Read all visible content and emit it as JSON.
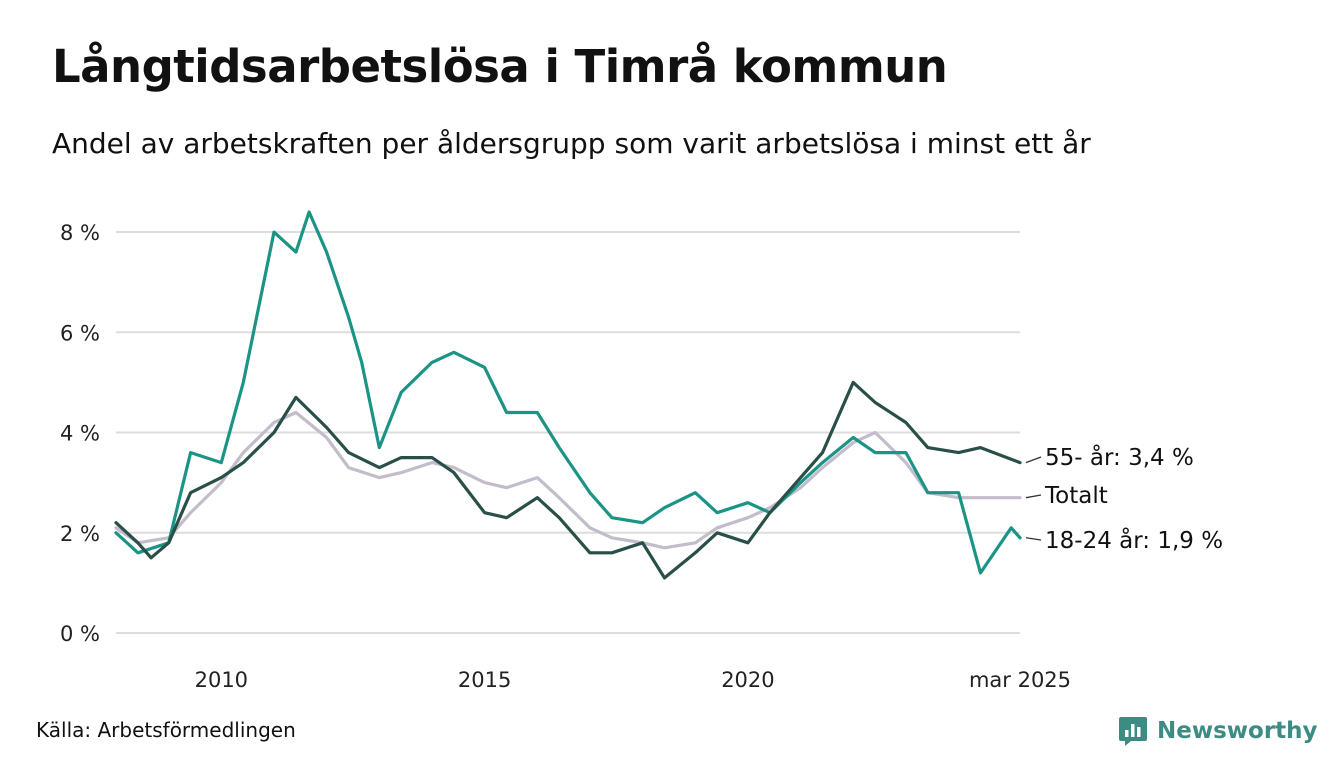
{
  "header": {
    "title": "Långtidsarbetslösa i Timrå kommun",
    "subtitle": "Andel av arbetskraften per åldersgrupp som varit arbetslösa i minst ett år"
  },
  "footer": {
    "source": "Källa: Arbetsförmedlingen",
    "brand": "Newsworthy",
    "brand_icon": "bar-chart-speech-bubble-icon"
  },
  "colors": {
    "totalt": "#c3bccb",
    "age_55": "#2a4f49",
    "age_18_24": "#1b9485",
    "grid": "#dddddd",
    "brand": "#3d8c83"
  },
  "chart_data": {
    "type": "line",
    "xlim": [
      "2008-01",
      "2025-03"
    ],
    "ylim": [
      0,
      8.5
    ],
    "y_ticks": [
      {
        "value": 0,
        "label": "0 %"
      },
      {
        "value": 2,
        "label": "2 %"
      },
      {
        "value": 4,
        "label": "4 %"
      },
      {
        "value": 6,
        "label": "6 %"
      },
      {
        "value": 8,
        "label": "8 %"
      }
    ],
    "x_ticks": [
      {
        "value": "2010-01",
        "label": "2010"
      },
      {
        "value": "2015-01",
        "label": "2015"
      },
      {
        "value": "2020-01",
        "label": "2020"
      },
      {
        "value": "2025-03",
        "label": "mar 2025"
      }
    ],
    "grid": true,
    "series": [
      {
        "key": "totalt",
        "name": "Totalt",
        "points": [
          [
            "2008-01",
            2.1
          ],
          [
            "2008-06",
            1.8
          ],
          [
            "2009-01",
            1.9
          ],
          [
            "2009-06",
            2.4
          ],
          [
            "2010-01",
            3.0
          ],
          [
            "2010-06",
            3.6
          ],
          [
            "2011-01",
            4.2
          ],
          [
            "2011-06",
            4.4
          ],
          [
            "2012-01",
            3.9
          ],
          [
            "2012-06",
            3.3
          ],
          [
            "2013-01",
            3.1
          ],
          [
            "2013-06",
            3.2
          ],
          [
            "2014-01",
            3.4
          ],
          [
            "2014-06",
            3.3
          ],
          [
            "2015-01",
            3.0
          ],
          [
            "2015-06",
            2.9
          ],
          [
            "2016-01",
            3.1
          ],
          [
            "2016-06",
            2.7
          ],
          [
            "2017-01",
            2.1
          ],
          [
            "2017-06",
            1.9
          ],
          [
            "2018-01",
            1.8
          ],
          [
            "2018-06",
            1.7
          ],
          [
            "2019-01",
            1.8
          ],
          [
            "2019-06",
            2.1
          ],
          [
            "2020-01",
            2.3
          ],
          [
            "2020-06",
            2.5
          ],
          [
            "2021-01",
            2.9
          ],
          [
            "2021-06",
            3.3
          ],
          [
            "2022-01",
            3.8
          ],
          [
            "2022-06",
            4.0
          ],
          [
            "2023-01",
            3.4
          ],
          [
            "2023-06",
            2.8
          ],
          [
            "2024-01",
            2.7
          ],
          [
            "2024-06",
            2.7
          ],
          [
            "2025-03",
            2.7
          ]
        ]
      },
      {
        "key": "age_55",
        "name": "55- år",
        "end_label": "55- år: 3,4 %",
        "points": [
          [
            "2008-01",
            2.2
          ],
          [
            "2008-06",
            1.8
          ],
          [
            "2008-09",
            1.5
          ],
          [
            "2009-01",
            1.8
          ],
          [
            "2009-06",
            2.8
          ],
          [
            "2010-01",
            3.1
          ],
          [
            "2010-06",
            3.4
          ],
          [
            "2011-01",
            4.0
          ],
          [
            "2011-06",
            4.7
          ],
          [
            "2012-01",
            4.1
          ],
          [
            "2012-06",
            3.6
          ],
          [
            "2013-01",
            3.3
          ],
          [
            "2013-06",
            3.5
          ],
          [
            "2014-01",
            3.5
          ],
          [
            "2014-06",
            3.2
          ],
          [
            "2015-01",
            2.4
          ],
          [
            "2015-06",
            2.3
          ],
          [
            "2016-01",
            2.7
          ],
          [
            "2016-06",
            2.3
          ],
          [
            "2017-01",
            1.6
          ],
          [
            "2017-06",
            1.6
          ],
          [
            "2018-01",
            1.8
          ],
          [
            "2018-06",
            1.1
          ],
          [
            "2019-01",
            1.6
          ],
          [
            "2019-06",
            2.0
          ],
          [
            "2020-01",
            1.8
          ],
          [
            "2020-06",
            2.4
          ],
          [
            "2021-01",
            3.1
          ],
          [
            "2021-06",
            3.6
          ],
          [
            "2022-01",
            5.0
          ],
          [
            "2022-06",
            4.6
          ],
          [
            "2023-01",
            4.2
          ],
          [
            "2023-06",
            3.7
          ],
          [
            "2024-01",
            3.6
          ],
          [
            "2024-06",
            3.7
          ],
          [
            "2025-03",
            3.4
          ]
        ]
      },
      {
        "key": "age_18_24",
        "name": "18-24 år",
        "end_label": "18-24 år: 1,9 %",
        "points": [
          [
            "2008-01",
            2.0
          ],
          [
            "2008-06",
            1.6
          ],
          [
            "2009-01",
            1.8
          ],
          [
            "2009-06",
            3.6
          ],
          [
            "2010-01",
            3.4
          ],
          [
            "2010-06",
            5.0
          ],
          [
            "2011-01",
            8.0
          ],
          [
            "2011-06",
            7.6
          ],
          [
            "2011-09",
            8.4
          ],
          [
            "2012-01",
            7.6
          ],
          [
            "2012-06",
            6.3
          ],
          [
            "2012-09",
            5.4
          ],
          [
            "2013-01",
            3.7
          ],
          [
            "2013-06",
            4.8
          ],
          [
            "2014-01",
            5.4
          ],
          [
            "2014-06",
            5.6
          ],
          [
            "2015-01",
            5.3
          ],
          [
            "2015-06",
            4.4
          ],
          [
            "2016-01",
            4.4
          ],
          [
            "2016-06",
            3.7
          ],
          [
            "2017-01",
            2.8
          ],
          [
            "2017-06",
            2.3
          ],
          [
            "2018-01",
            2.2
          ],
          [
            "2018-06",
            2.5
          ],
          [
            "2019-01",
            2.8
          ],
          [
            "2019-06",
            2.4
          ],
          [
            "2020-01",
            2.6
          ],
          [
            "2020-06",
            2.4
          ],
          [
            "2021-01",
            3.0
          ],
          [
            "2021-06",
            3.4
          ],
          [
            "2022-01",
            3.9
          ],
          [
            "2022-06",
            3.6
          ],
          [
            "2023-01",
            3.6
          ],
          [
            "2023-06",
            2.8
          ],
          [
            "2024-01",
            2.8
          ],
          [
            "2024-06",
            1.2
          ],
          [
            "2025-01",
            2.1
          ],
          [
            "2025-03",
            1.9
          ]
        ]
      }
    ],
    "end_labels": [
      {
        "series": "age_55",
        "text": "55- år: 3,4 %"
      },
      {
        "series": "totalt",
        "text": "Totalt"
      },
      {
        "series": "age_18_24",
        "text": "18-24 år: 1,9 %"
      }
    ]
  }
}
